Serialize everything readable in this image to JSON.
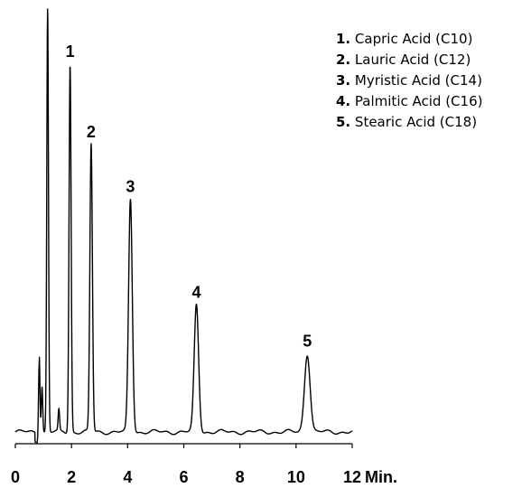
{
  "chart_data": {
    "type": "line",
    "title": "",
    "xlabel": "",
    "ylabel": "",
    "x_unit": "Min.",
    "xlim": [
      0,
      12
    ],
    "ylim": [
      0,
      100
    ],
    "x_ticks": [
      "0",
      "2",
      "4",
      "6",
      "8",
      "10",
      "12"
    ],
    "grid": false,
    "legend_placement": "top-right",
    "line_color": "#000000",
    "peaks": [
      {
        "label": "1",
        "name": "Capric Acid (C10)",
        "rt": 1.95,
        "height": 87
      },
      {
        "label": "2",
        "name": "Lauric Acid (C12)",
        "rt": 2.7,
        "height": 68
      },
      {
        "label": "3",
        "name": "Myristic Acid (C14)",
        "rt": 4.1,
        "height": 55
      },
      {
        "label": "4",
        "name": "Palmitic Acid (C16)",
        "rt": 6.45,
        "height": 30
      },
      {
        "label": "5",
        "name": "Stearic Acid (C18)",
        "rt": 10.4,
        "height": 18.5
      }
    ],
    "unlabeled_peaks": [
      {
        "rt": 0.85,
        "height": 19
      },
      {
        "rt": 0.95,
        "height": 11
      },
      {
        "rt": 1.15,
        "height": 100
      },
      {
        "rt": 1.55,
        "height": 5
      }
    ],
    "legend": [
      {
        "num": "1.",
        "text": "Capric Acid (C10)"
      },
      {
        "num": "2.",
        "text": "Lauric Acid (C12)"
      },
      {
        "num": "3.",
        "text": "Myristic Acid (C14)"
      },
      {
        "num": "4.",
        "text": "Palmitic Acid (C16)"
      },
      {
        "num": "5.",
        "text": "Stearic Acid (C18)"
      }
    ]
  }
}
